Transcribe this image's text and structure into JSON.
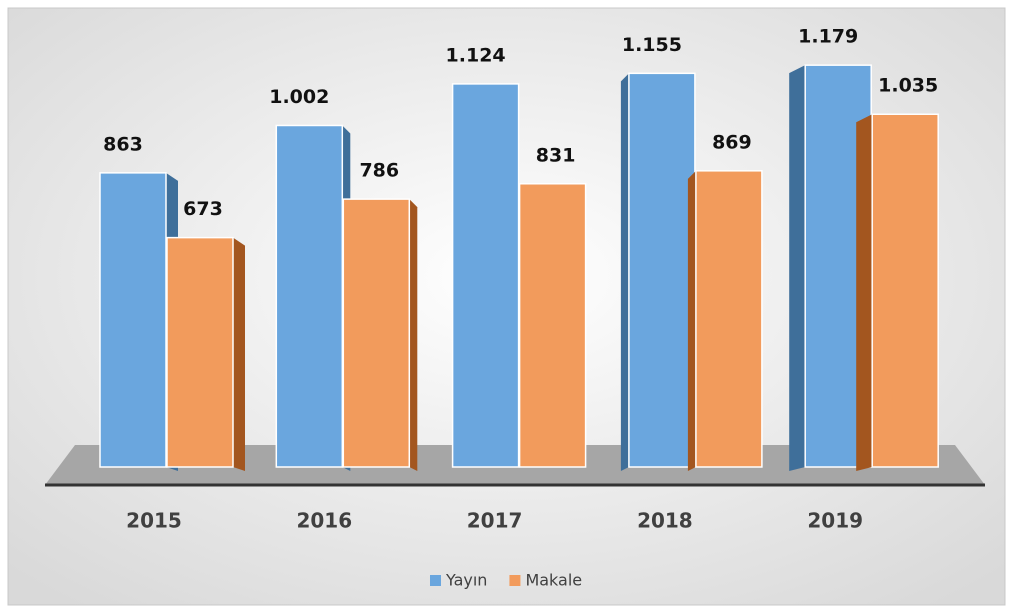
{
  "chart_data": {
    "type": "bar",
    "categories": [
      "2015",
      "2016",
      "2017",
      "2018",
      "2019"
    ],
    "series": [
      {
        "name": "Yayın",
        "color": "#6aa6de",
        "values": [
          863,
          1002,
          1124,
          1155,
          1179
        ],
        "value_labels": [
          "863",
          "1.002",
          "1.124",
          "1.155",
          "1.179"
        ]
      },
      {
        "name": "Makale",
        "color": "#f29b5c",
        "values": [
          673,
          786,
          831,
          869,
          1035
        ],
        "value_labels": [
          "673",
          "786",
          "831",
          "869",
          "1.035"
        ]
      }
    ],
    "ylim": [
      0,
      1200
    ]
  }
}
